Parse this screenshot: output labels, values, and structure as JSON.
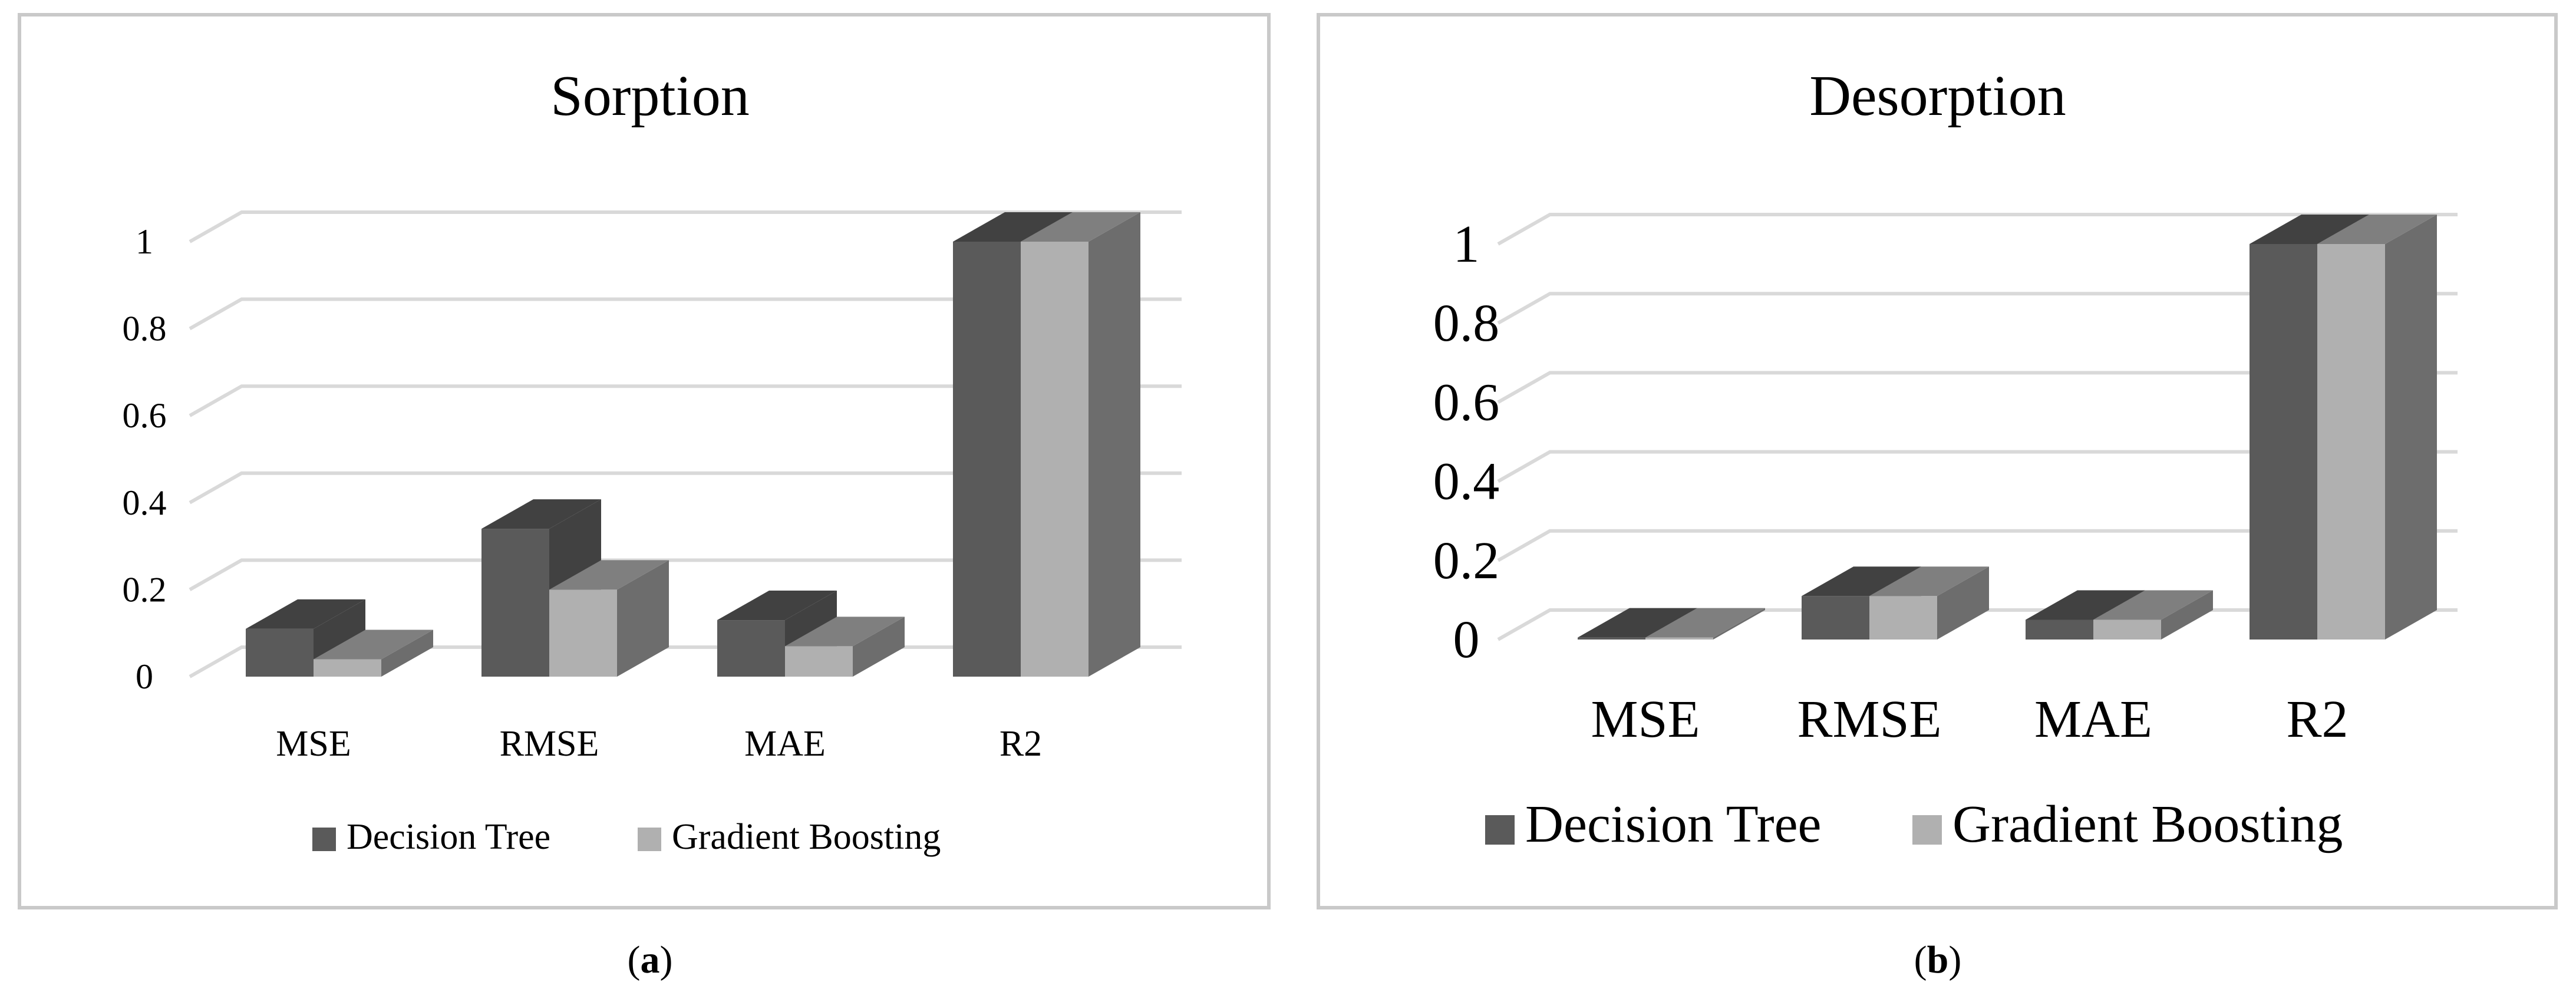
{
  "colors": {
    "decision_tree": "#5a5a5a",
    "gradient_boosting": "#b0b0b0"
  },
  "chart_data": [
    {
      "type": "bar",
      "title": "Sorption",
      "panel_label": "a",
      "categories": [
        "MSE",
        "RMSE",
        "MAE",
        "R2"
      ],
      "series": [
        {
          "name": "Decision Tree",
          "values": [
            0.11,
            0.34,
            0.13,
            1.0
          ]
        },
        {
          "name": "Gradient Boosting",
          "values": [
            0.04,
            0.2,
            0.07,
            1.0
          ]
        }
      ],
      "yticks": [
        "0",
        "0.2",
        "0.4",
        "0.6",
        "0.8",
        "1"
      ],
      "ylim": [
        0,
        1.1
      ],
      "grid": true,
      "legend": "bottom"
    },
    {
      "type": "bar",
      "title": "Desorption",
      "panel_label": "b",
      "categories": [
        "MSE",
        "RMSE",
        "MAE",
        "R2"
      ],
      "series": [
        {
          "name": "Decision Tree",
          "values": [
            0.005,
            0.11,
            0.05,
            1.0
          ]
        },
        {
          "name": "Gradient Boosting",
          "values": [
            0.005,
            0.11,
            0.05,
            1.0
          ]
        }
      ],
      "yticks": [
        "0",
        "0.2",
        "0.4",
        "0.6",
        "0.8",
        "1"
      ],
      "ylim": [
        0,
        1.1
      ],
      "grid": true,
      "legend": "bottom"
    }
  ]
}
